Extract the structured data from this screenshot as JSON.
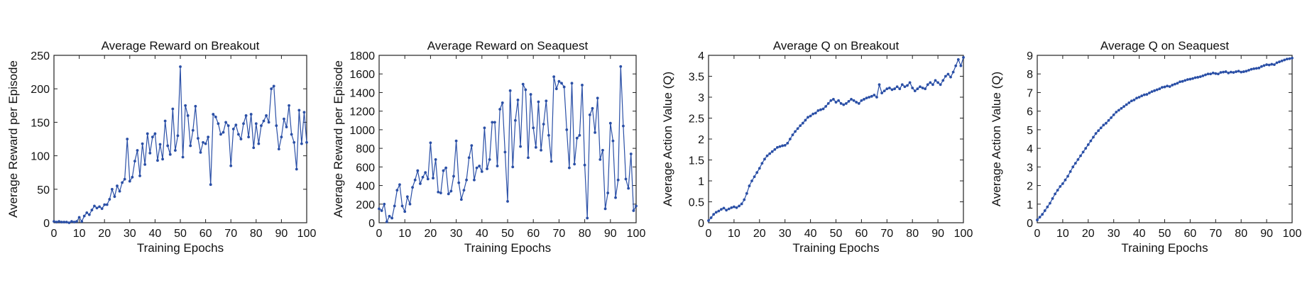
{
  "chart_data": [
    {
      "type": "line",
      "title": "Average Reward on Breakout",
      "xlabel": "Training Epochs",
      "ylabel": "Average Reward per Episode",
      "xlim": [
        0,
        100
      ],
      "ylim": [
        0,
        250
      ],
      "xticks": [
        0,
        10,
        20,
        30,
        40,
        50,
        60,
        70,
        80,
        90,
        100
      ],
      "yticks": [
        0,
        50,
        100,
        150,
        200,
        250
      ],
      "grid": false,
      "color": "#2a4fa6",
      "x": [
        0,
        1,
        2,
        3,
        4,
        5,
        6,
        7,
        8,
        9,
        10,
        11,
        12,
        13,
        14,
        15,
        16,
        17,
        18,
        19,
        20,
        21,
        22,
        23,
        24,
        25,
        26,
        27,
        28,
        29,
        30,
        31,
        32,
        33,
        34,
        35,
        36,
        37,
        38,
        39,
        40,
        41,
        42,
        43,
        44,
        45,
        46,
        47,
        48,
        49,
        50,
        51,
        52,
        53,
        54,
        55,
        56,
        57,
        58,
        59,
        60,
        61,
        62,
        63,
        64,
        65,
        66,
        67,
        68,
        69,
        70,
        71,
        72,
        73,
        74,
        75,
        76,
        77,
        78,
        79,
        80,
        81,
        82,
        83,
        84,
        85,
        86,
        87,
        88,
        89,
        90,
        91,
        92,
        93,
        94,
        95,
        96,
        97,
        98,
        99,
        100
      ],
      "y": [
        2,
        1,
        2,
        1,
        1,
        1,
        0,
        2,
        1,
        2,
        8,
        2,
        10,
        15,
        12,
        19,
        25,
        22,
        24,
        21,
        27,
        27,
        35,
        50,
        39,
        55,
        47,
        60,
        65,
        125,
        62,
        68,
        92,
        108,
        70,
        118,
        87,
        133,
        104,
        128,
        133,
        93,
        117,
        95,
        152,
        115,
        102,
        170,
        108,
        130,
        233,
        98,
        175,
        160,
        115,
        138,
        174,
        126,
        105,
        120,
        118,
        128,
        57,
        162,
        158,
        148,
        132,
        135,
        150,
        145,
        85,
        140,
        146,
        132,
        125,
        148,
        160,
        128,
        162,
        112,
        148,
        118,
        145,
        152,
        160,
        150,
        200,
        204,
        145,
        110,
        128,
        155,
        143,
        175,
        132,
        120,
        80,
        168,
        118,
        165,
        120
      ]
    },
    {
      "type": "line",
      "title": "Average Reward on Seaquest",
      "xlabel": "Training Epochs",
      "ylabel": "Average Reward per Episode",
      "xlim": [
        0,
        100
      ],
      "ylim": [
        0,
        1800
      ],
      "xticks": [
        0,
        10,
        20,
        30,
        40,
        50,
        60,
        70,
        80,
        90,
        100
      ],
      "yticks": [
        0,
        200,
        400,
        600,
        800,
        1000,
        1200,
        1400,
        1600,
        1800
      ],
      "grid": false,
      "color": "#2a4fa6",
      "x": [
        0,
        1,
        2,
        3,
        4,
        5,
        6,
        7,
        8,
        9,
        10,
        11,
        12,
        13,
        14,
        15,
        16,
        17,
        18,
        19,
        20,
        21,
        22,
        23,
        24,
        25,
        26,
        27,
        28,
        29,
        30,
        31,
        32,
        33,
        34,
        35,
        36,
        37,
        38,
        39,
        40,
        41,
        42,
        43,
        44,
        45,
        46,
        47,
        48,
        49,
        50,
        51,
        52,
        53,
        54,
        55,
        56,
        57,
        58,
        59,
        60,
        61,
        62,
        63,
        64,
        65,
        66,
        67,
        68,
        69,
        70,
        71,
        72,
        73,
        74,
        75,
        76,
        77,
        78,
        79,
        80,
        81,
        82,
        83,
        84,
        85,
        86,
        87,
        88,
        89,
        90,
        91,
        92,
        93,
        94,
        95,
        96,
        97,
        98,
        99,
        100
      ],
      "y": [
        150,
        130,
        200,
        10,
        70,
        50,
        180,
        350,
        410,
        180,
        120,
        280,
        200,
        380,
        460,
        560,
        420,
        490,
        540,
        470,
        860,
        480,
        680,
        330,
        320,
        560,
        590,
        310,
        340,
        500,
        880,
        430,
        250,
        350,
        460,
        700,
        830,
        460,
        590,
        610,
        550,
        1020,
        580,
        680,
        1080,
        1080,
        610,
        1220,
        1290,
        760,
        230,
        1420,
        600,
        1100,
        1320,
        820,
        1490,
        1430,
        700,
        1380,
        1020,
        810,
        1300,
        780,
        1060,
        1310,
        940,
        660,
        1570,
        1440,
        1520,
        1500,
        1460,
        1000,
        590,
        1500,
        630,
        910,
        940,
        1480,
        620,
        50,
        1160,
        1230,
        970,
        1340,
        680,
        780,
        150,
        320,
        1070,
        880,
        270,
        460,
        1680,
        1040,
        470,
        370,
        740,
        130,
        180
      ]
    },
    {
      "type": "line",
      "title": "Average Q on Breakout",
      "xlabel": "Training Epochs",
      "ylabel": "Average Action Value (Q)",
      "xlim": [
        0,
        100
      ],
      "ylim": [
        0,
        4
      ],
      "xticks": [
        0,
        10,
        20,
        30,
        40,
        50,
        60,
        70,
        80,
        90,
        100
      ],
      "yticks": [
        0,
        0.5,
        1,
        1.5,
        2,
        2.5,
        3,
        3.5,
        4
      ],
      "grid": false,
      "color": "#2a4fa6",
      "x": [
        0,
        1,
        2,
        3,
        4,
        5,
        6,
        7,
        8,
        9,
        10,
        11,
        12,
        13,
        14,
        15,
        16,
        17,
        18,
        19,
        20,
        21,
        22,
        23,
        24,
        25,
        26,
        27,
        28,
        29,
        30,
        31,
        32,
        33,
        34,
        35,
        36,
        37,
        38,
        39,
        40,
        41,
        42,
        43,
        44,
        45,
        46,
        47,
        48,
        49,
        50,
        51,
        52,
        53,
        54,
        55,
        56,
        57,
        58,
        59,
        60,
        61,
        62,
        63,
        64,
        65,
        66,
        67,
        68,
        69,
        70,
        71,
        72,
        73,
        74,
        75,
        76,
        77,
        78,
        79,
        80,
        81,
        82,
        83,
        84,
        85,
        86,
        87,
        88,
        89,
        90,
        91,
        92,
        93,
        94,
        95,
        96,
        97,
        98,
        99,
        100
      ],
      "y": [
        0.05,
        0.12,
        0.2,
        0.25,
        0.28,
        0.32,
        0.35,
        0.3,
        0.33,
        0.36,
        0.38,
        0.36,
        0.4,
        0.45,
        0.55,
        0.7,
        0.88,
        1.0,
        1.1,
        1.2,
        1.3,
        1.42,
        1.52,
        1.6,
        1.65,
        1.7,
        1.75,
        1.8,
        1.82,
        1.84,
        1.85,
        1.9,
        2.0,
        2.1,
        2.18,
        2.25,
        2.32,
        2.38,
        2.45,
        2.52,
        2.55,
        2.6,
        2.62,
        2.68,
        2.7,
        2.72,
        2.78,
        2.85,
        2.92,
        2.95,
        2.88,
        2.92,
        2.85,
        2.82,
        2.85,
        2.9,
        2.95,
        2.92,
        2.88,
        2.85,
        2.92,
        2.95,
        2.98,
        3.0,
        3.02,
        3.05,
        3.0,
        3.3,
        3.1,
        3.15,
        3.2,
        3.22,
        3.18,
        3.2,
        3.25,
        3.2,
        3.3,
        3.25,
        3.28,
        3.35,
        3.22,
        3.15,
        3.2,
        3.25,
        3.22,
        3.2,
        3.3,
        3.35,
        3.3,
        3.4,
        3.35,
        3.3,
        3.4,
        3.5,
        3.55,
        3.48,
        3.6,
        3.75,
        3.9,
        3.75,
        3.95
      ]
    },
    {
      "type": "line",
      "title": "Average Q on Seaquest",
      "xlabel": "Training Epochs",
      "ylabel": "Average Action Value (Q)",
      "xlim": [
        0,
        100
      ],
      "ylim": [
        0,
        9
      ],
      "xticks": [
        0,
        10,
        20,
        30,
        40,
        50,
        60,
        70,
        80,
        90,
        100
      ],
      "yticks": [
        0,
        1,
        2,
        3,
        4,
        5,
        6,
        7,
        8,
        9
      ],
      "grid": false,
      "color": "#2a4fa6",
      "x": [
        0,
        1,
        2,
        3,
        4,
        5,
        6,
        7,
        8,
        9,
        10,
        11,
        12,
        13,
        14,
        15,
        16,
        17,
        18,
        19,
        20,
        21,
        22,
        23,
        24,
        25,
        26,
        27,
        28,
        29,
        30,
        31,
        32,
        33,
        34,
        35,
        36,
        37,
        38,
        39,
        40,
        41,
        42,
        43,
        44,
        45,
        46,
        47,
        48,
        49,
        50,
        51,
        52,
        53,
        54,
        55,
        56,
        57,
        58,
        59,
        60,
        61,
        62,
        63,
        64,
        65,
        66,
        67,
        68,
        69,
        70,
        71,
        72,
        73,
        74,
        75,
        76,
        77,
        78,
        79,
        80,
        81,
        82,
        83,
        84,
        85,
        86,
        87,
        88,
        89,
        90,
        91,
        92,
        93,
        94,
        95,
        96,
        97,
        98,
        99,
        100
      ],
      "y": [
        0.15,
        0.3,
        0.45,
        0.65,
        0.85,
        1.05,
        1.3,
        1.55,
        1.75,
        1.95,
        2.1,
        2.3,
        2.5,
        2.75,
        3.0,
        3.2,
        3.4,
        3.6,
        3.8,
        4.0,
        4.2,
        4.4,
        4.6,
        4.8,
        4.95,
        5.1,
        5.25,
        5.35,
        5.5,
        5.65,
        5.8,
        5.95,
        6.05,
        6.15,
        6.25,
        6.35,
        6.45,
        6.55,
        6.6,
        6.7,
        6.75,
        6.82,
        6.88,
        6.9,
        6.98,
        7.05,
        7.1,
        7.15,
        7.2,
        7.28,
        7.3,
        7.35,
        7.32,
        7.4,
        7.45,
        7.5,
        7.58,
        7.6,
        7.65,
        7.7,
        7.72,
        7.75,
        7.8,
        7.82,
        7.85,
        7.9,
        7.95,
        8.0,
        8.0,
        8.05,
        8.02,
        8.0,
        8.08,
        8.1,
        8.12,
        8.05,
        8.1,
        8.08,
        8.12,
        8.15,
        8.1,
        8.12,
        8.15,
        8.2,
        8.25,
        8.28,
        8.3,
        8.32,
        8.4,
        8.45,
        8.5,
        8.48,
        8.52,
        8.5,
        8.6,
        8.65,
        8.7,
        8.75,
        8.8,
        8.82,
        8.85
      ]
    }
  ]
}
